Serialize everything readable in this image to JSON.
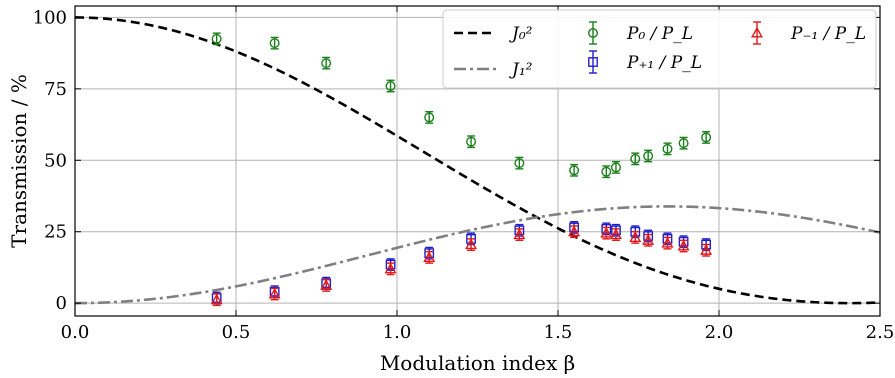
{
  "chart_data": {
    "type": "scatter",
    "xlabel": "Modulation index  β",
    "ylabel": "Transmission / %",
    "xlim": [
      0,
      2.5
    ],
    "ylim": [
      -4.5,
      104
    ],
    "xticks": [
      "0.0",
      "0.5",
      "1.0",
      "1.5",
      "2.0",
      "2.5"
    ],
    "yticks": [
      "0",
      "25",
      "50",
      "75",
      "100"
    ],
    "grid": true,
    "legend_position": "top-right",
    "curves": [
      {
        "name": "J₀²",
        "function": "J0_squared",
        "style": "dashed",
        "color": "#000000"
      },
      {
        "name": "J₁²",
        "function": "J1_squared",
        "style": "dash-dot",
        "color": "#808080"
      }
    ],
    "series": [
      {
        "name": "P₀ / P_L",
        "marker": "circle",
        "color": "#1a7f1a",
        "x": [
          0.44,
          0.62,
          0.78,
          0.98,
          1.1,
          1.23,
          1.38,
          1.55,
          1.65,
          1.68,
          1.74,
          1.78,
          1.84,
          1.89,
          1.96
        ],
        "y": [
          92.5,
          91.0,
          84.0,
          76.0,
          65.0,
          56.5,
          49.0,
          46.5,
          46.0,
          47.5,
          50.5,
          51.5,
          54.0,
          56.0,
          58.0
        ],
        "err": [
          2,
          2,
          2,
          2,
          2,
          2,
          2,
          2,
          2,
          2,
          2,
          2,
          2,
          2,
          2
        ]
      },
      {
        "name": "P₊₁ / P_L",
        "marker": "square",
        "color": "#1f1fcc",
        "x": [
          0.44,
          0.62,
          0.78,
          0.98,
          1.1,
          1.23,
          1.38,
          1.55,
          1.65,
          1.68,
          1.74,
          1.78,
          1.84,
          1.89,
          1.96
        ],
        "y": [
          1.8,
          4.0,
          7.0,
          13.5,
          17.5,
          22.5,
          25.5,
          26.5,
          26.0,
          25.5,
          25.0,
          23.5,
          22.5,
          21.5,
          20.5
        ],
        "err": [
          2,
          2,
          2,
          2,
          2,
          2,
          2,
          2,
          2,
          2,
          2,
          2,
          2,
          2,
          2
        ]
      },
      {
        "name": "P₋₁ / P_L",
        "marker": "triangle",
        "color": "#e01919",
        "x": [
          0.44,
          0.62,
          0.78,
          0.98,
          1.1,
          1.23,
          1.38,
          1.55,
          1.65,
          1.68,
          1.74,
          1.78,
          1.84,
          1.89,
          1.96
        ],
        "y": [
          1.2,
          3.2,
          6.2,
          12.0,
          16.0,
          20.5,
          24.0,
          25.0,
          24.5,
          24.0,
          23.0,
          22.0,
          21.0,
          20.0,
          18.5
        ],
        "err": [
          2,
          2,
          2,
          2,
          2,
          2,
          2,
          2,
          2,
          2,
          2,
          2,
          2,
          2,
          2
        ]
      }
    ]
  }
}
